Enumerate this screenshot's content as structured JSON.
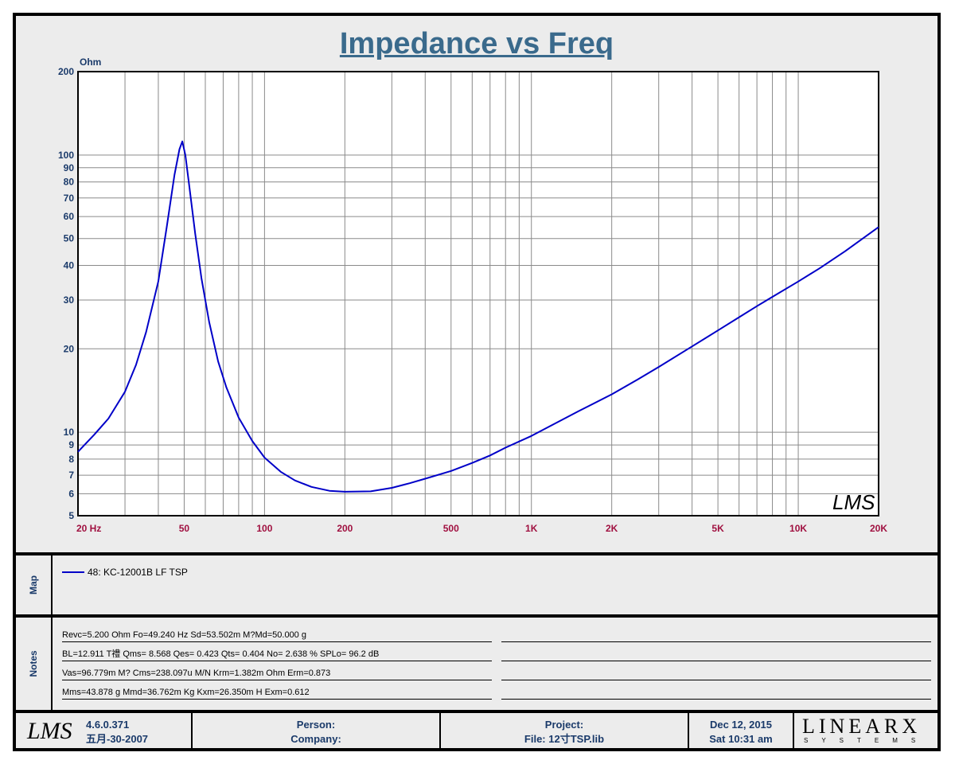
{
  "title": "Impedance vs Freq",
  "chart_data": {
    "type": "line",
    "title": "Impedance vs Freq",
    "ylabel": "Ohm",
    "x_scale": "log",
    "y_scale": "log",
    "xlim": [
      20,
      20000
    ],
    "ylim": [
      5,
      200
    ],
    "grid": true,
    "x_ticks": [
      {
        "value": 20,
        "label": "20  Hz"
      },
      {
        "value": 50,
        "label": "50"
      },
      {
        "value": 100,
        "label": "100"
      },
      {
        "value": 200,
        "label": "200"
      },
      {
        "value": 500,
        "label": "500"
      },
      {
        "value": 1000,
        "label": "1K"
      },
      {
        "value": 2000,
        "label": "2K"
      },
      {
        "value": 5000,
        "label": "5K"
      },
      {
        "value": 10000,
        "label": "10K"
      },
      {
        "value": 20000,
        "label": "20K"
      }
    ],
    "y_ticks": [
      {
        "value": 5,
        "label": "5"
      },
      {
        "value": 6,
        "label": "6"
      },
      {
        "value": 7,
        "label": "7"
      },
      {
        "value": 8,
        "label": "8"
      },
      {
        "value": 9,
        "label": "9"
      },
      {
        "value": 10,
        "label": "10"
      },
      {
        "value": 20,
        "label": "20"
      },
      {
        "value": 30,
        "label": "30"
      },
      {
        "value": 40,
        "label": "40"
      },
      {
        "value": 50,
        "label": "50"
      },
      {
        "value": 60,
        "label": "60"
      },
      {
        "value": 70,
        "label": "70"
      },
      {
        "value": 80,
        "label": "80"
      },
      {
        "value": 90,
        "label": "90"
      },
      {
        "value": 100,
        "label": "100"
      },
      {
        "value": 200,
        "label": "200"
      }
    ],
    "series": [
      {
        "name": "48: KC-12001B  LF TSP",
        "color": "#0000c8",
        "x": [
          20,
          23,
          26,
          30,
          33,
          36,
          40,
          43,
          46,
          48,
          49.2,
          50.5,
          52,
          55,
          58,
          62,
          67,
          72,
          80,
          90,
          100,
          115,
          130,
          150,
          175,
          200,
          250,
          300,
          350,
          400,
          500,
          600,
          700,
          800,
          1000,
          1500,
          2000,
          2500,
          3000,
          4000,
          5000,
          6000,
          7000,
          8000,
          10000,
          12000,
          15000,
          20000
        ],
        "y": [
          8.5,
          9.8,
          11.2,
          14,
          17.5,
          23,
          35,
          55,
          85,
          105,
          112,
          100,
          80,
          52,
          36,
          25,
          18,
          14.5,
          11.3,
          9.3,
          8.1,
          7.2,
          6.7,
          6.35,
          6.15,
          6.1,
          6.12,
          6.3,
          6.55,
          6.8,
          7.25,
          7.75,
          8.25,
          8.8,
          9.7,
          11.9,
          13.7,
          15.5,
          17.2,
          20.4,
          23.3,
          26,
          28.5,
          30.8,
          35,
          39,
          45,
          55
        ]
      }
    ]
  },
  "watermark": "LMS",
  "map": {
    "label": "Map",
    "entry": "48: KC-12001B  LF TSP"
  },
  "notes": {
    "label": "Notes",
    "lines": [
      "Revc=5.200 Ohm  Fo=49.240 Hz  Sd=53.502m M?Md=50.000 g",
      "BL=12.911 T禮  Qms= 8.568  Qes= 0.423  Qts= 0.404  No= 2.638 %  SPLo= 96.2 dB",
      "Vas=96.779m M? Cms=238.097u M/N  Krm=1.382m Ohm  Erm=0.873",
      "Mms=43.878 g  Mmd=36.762m Kg  Kxm=26.350m H  Exm=0.612"
    ]
  },
  "footer": {
    "logo": "LMS",
    "version": "4.6.0.371",
    "build_date": "五月-30-2007",
    "person_label": "Person:",
    "company_label": "Company:",
    "project_label": "Project:",
    "file_label": "File: 12寸TSP.lib",
    "date": "Dec 12, 2015",
    "time": "Sat 10:31 am",
    "brand_main": "LINEARX",
    "brand_sub": "SYSTEMS"
  }
}
